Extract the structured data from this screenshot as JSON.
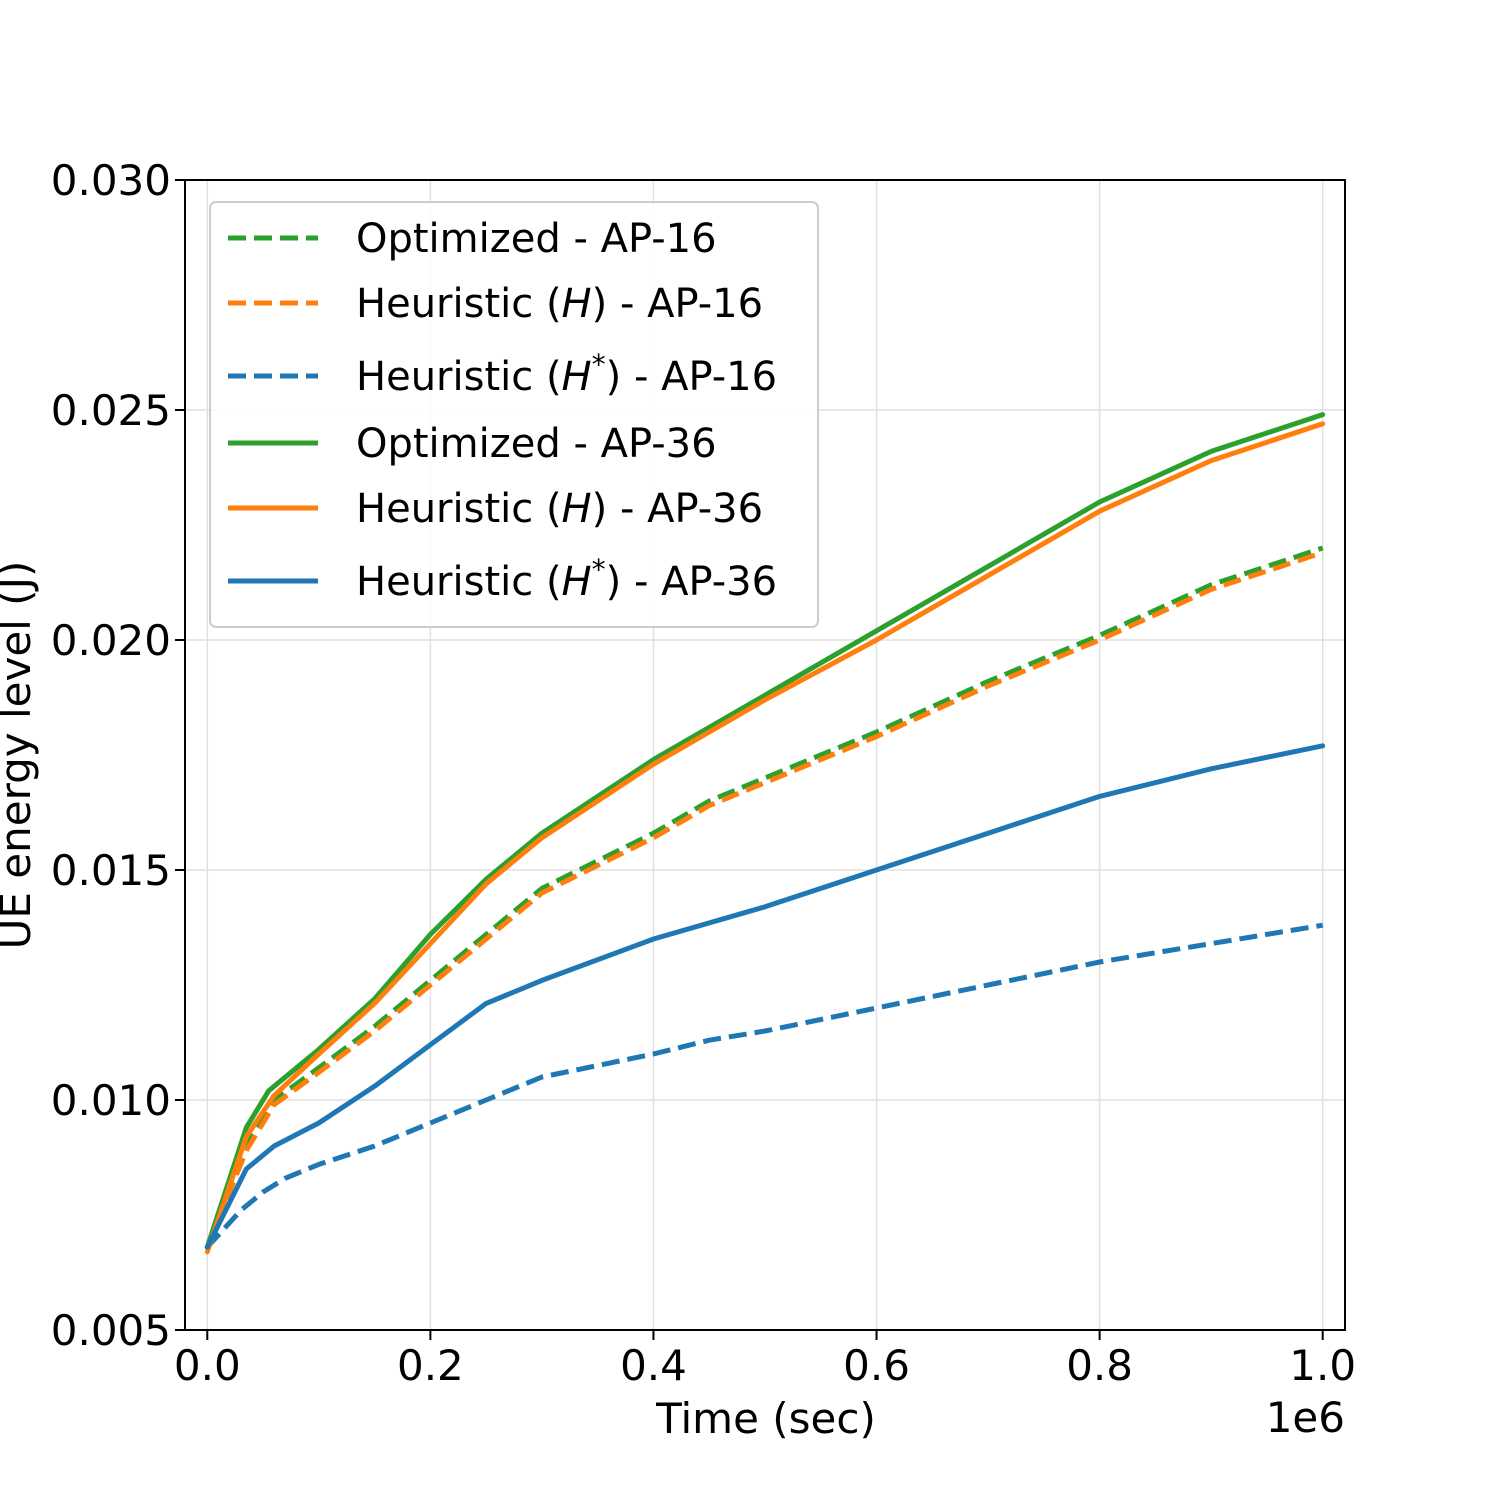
{
  "chart_data": {
    "type": "line",
    "title": "",
    "xlabel": "Time (sec)",
    "ylabel": "UE energy level (J)",
    "x_offset_label": "1e6",
    "xlim": [
      -0.02,
      1.02
    ],
    "ylim": [
      0.005,
      0.03
    ],
    "x_ticks": [
      0.0,
      0.2,
      0.4,
      0.6,
      0.8,
      1.0
    ],
    "x_tick_labels": [
      "0.0",
      "0.2",
      "0.4",
      "0.6",
      "0.8",
      "1.0"
    ],
    "y_ticks": [
      0.005,
      0.01,
      0.015,
      0.02,
      0.025,
      0.03
    ],
    "y_tick_labels": [
      "0.005",
      "0.010",
      "0.015",
      "0.020",
      "0.025",
      "0.030"
    ],
    "grid": true,
    "legend_position": "upper-left",
    "series": [
      {
        "name": "Optimized - AP-16",
        "legend_main": "Optimized - AP-16",
        "legend_star": "",
        "legend_after": "",
        "color": "#2ca02c",
        "style": "dashed",
        "x": [
          0.0,
          0.035,
          0.06,
          0.1,
          0.15,
          0.2,
          0.25,
          0.3,
          0.4,
          0.45,
          0.5,
          0.6,
          0.7,
          0.8,
          0.9,
          1.0
        ],
        "y": [
          0.0068,
          0.009,
          0.01,
          0.0107,
          0.0116,
          0.0126,
          0.0136,
          0.0146,
          0.0158,
          0.0165,
          0.017,
          0.018,
          0.0191,
          0.0201,
          0.0212,
          0.022
        ]
      },
      {
        "name": "Heuristic (H) - AP-16",
        "legend_main": "Heuristic (",
        "legend_italic": "H",
        "legend_star": "",
        "legend_after": ") - AP-16",
        "color": "#ff7f0e",
        "style": "dashed",
        "x": [
          0.0,
          0.035,
          0.06,
          0.1,
          0.15,
          0.2,
          0.25,
          0.3,
          0.4,
          0.45,
          0.5,
          0.6,
          0.7,
          0.8,
          0.9,
          1.0
        ],
        "y": [
          0.0068,
          0.0089,
          0.0099,
          0.0106,
          0.0115,
          0.0125,
          0.0135,
          0.0145,
          0.0157,
          0.0164,
          0.0169,
          0.0179,
          0.019,
          0.02,
          0.0211,
          0.0219
        ]
      },
      {
        "name": "Heuristic (H*) - AP-16",
        "legend_main": "Heuristic (",
        "legend_italic": "H",
        "legend_star": "*",
        "legend_after": ") - AP-16",
        "color": "#1f77b4",
        "style": "dashed",
        "x": [
          0.0,
          0.03,
          0.05,
          0.07,
          0.1,
          0.15,
          0.2,
          0.25,
          0.3,
          0.4,
          0.45,
          0.5,
          0.6,
          0.7,
          0.8,
          0.9,
          1.0
        ],
        "y": [
          0.0068,
          0.0076,
          0.008,
          0.0083,
          0.0086,
          0.009,
          0.0095,
          0.01,
          0.0105,
          0.011,
          0.0113,
          0.0115,
          0.012,
          0.0125,
          0.013,
          0.0134,
          0.0138
        ]
      },
      {
        "name": "Optimized - AP-36",
        "legend_main": "Optimized - AP-36",
        "legend_star": "",
        "legend_after": "",
        "color": "#2ca02c",
        "style": "solid",
        "x": [
          0.0,
          0.035,
          0.055,
          0.1,
          0.15,
          0.2,
          0.25,
          0.3,
          0.4,
          0.5,
          0.6,
          0.7,
          0.8,
          0.9,
          1.0
        ],
        "y": [
          0.0068,
          0.0094,
          0.0102,
          0.0111,
          0.0122,
          0.0136,
          0.0148,
          0.0158,
          0.0174,
          0.0188,
          0.0202,
          0.0216,
          0.023,
          0.0241,
          0.0249
        ]
      },
      {
        "name": "Heuristic (H) - AP-36",
        "legend_main": "Heuristic (",
        "legend_italic": "H",
        "legend_star": "",
        "legend_after": ") - AP-36",
        "color": "#ff7f0e",
        "style": "solid",
        "x": [
          0.0,
          0.035,
          0.06,
          0.1,
          0.15,
          0.2,
          0.25,
          0.3,
          0.4,
          0.5,
          0.6,
          0.7,
          0.8,
          0.9,
          1.0
        ],
        "y": [
          0.0067,
          0.0092,
          0.0101,
          0.011,
          0.0121,
          0.0134,
          0.0147,
          0.0157,
          0.0173,
          0.0187,
          0.02,
          0.0214,
          0.0228,
          0.0239,
          0.0247
        ]
      },
      {
        "name": "Heuristic (H*) - AP-36",
        "legend_main": "Heuristic (",
        "legend_italic": "H",
        "legend_star": "*",
        "legend_after": ") - AP-36",
        "color": "#1f77b4",
        "style": "solid",
        "x": [
          0.0,
          0.035,
          0.06,
          0.1,
          0.15,
          0.2,
          0.25,
          0.3,
          0.4,
          0.5,
          0.6,
          0.7,
          0.8,
          0.9,
          1.0
        ],
        "y": [
          0.0068,
          0.0085,
          0.009,
          0.0095,
          0.0103,
          0.0112,
          0.0121,
          0.0126,
          0.0135,
          0.0142,
          0.015,
          0.0158,
          0.0166,
          0.0172,
          0.0177
        ]
      }
    ]
  }
}
